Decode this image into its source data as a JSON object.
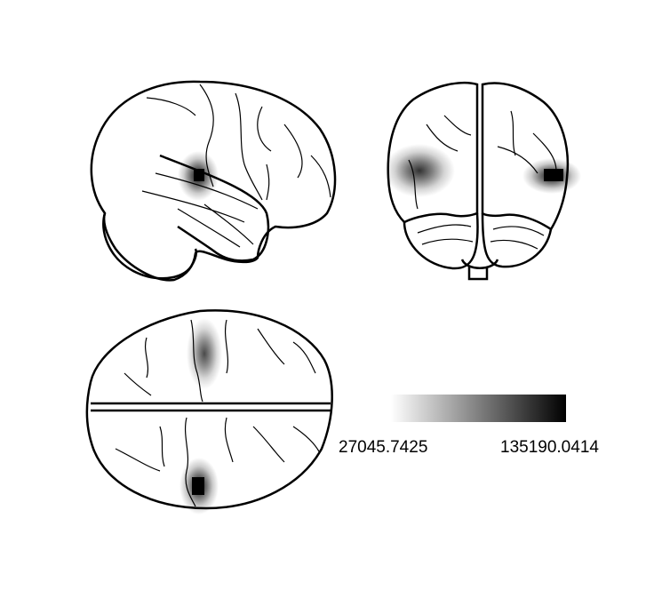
{
  "figure": {
    "views": [
      "sagittal",
      "coronal",
      "axial"
    ],
    "colormap": [
      "#ffffff",
      "#000000"
    ]
  },
  "colorbar": {
    "min_label": "27045.7425",
    "max_label": "135190.0414",
    "min_value": 27045.7425,
    "max_value": 135190.0414
  }
}
